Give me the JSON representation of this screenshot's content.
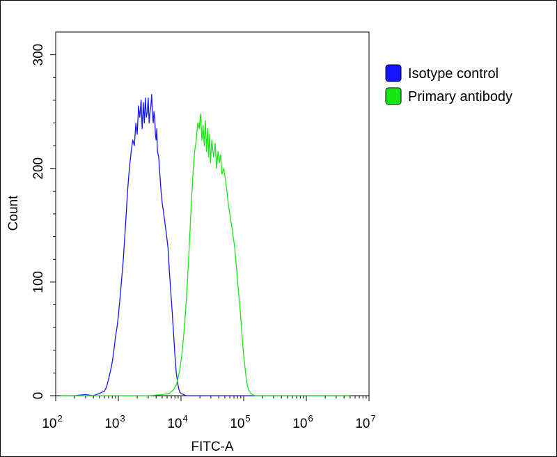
{
  "chart_data": {
    "type": "line",
    "title": "",
    "xlabel": "FITC-A",
    "ylabel": "Count",
    "x_scale": "log",
    "xlim": [
      100,
      10000000
    ],
    "ylim": [
      0,
      320
    ],
    "x_ticks": [
      {
        "value": 100,
        "base": "10",
        "exp": "2"
      },
      {
        "value": 1000,
        "base": "10",
        "exp": "3"
      },
      {
        "value": 10000,
        "base": "10",
        "exp": "4"
      },
      {
        "value": 100000,
        "base": "10",
        "exp": "5"
      },
      {
        "value": 1000000,
        "base": "10",
        "exp": "6"
      },
      {
        "value": 10000000,
        "base": "10",
        "exp": "7"
      }
    ],
    "y_ticks": [
      0,
      100,
      200,
      300
    ],
    "grid": false,
    "legend_position": "right",
    "series": [
      {
        "name": "Isotype control",
        "color": "#1515ff",
        "x": [
          120,
          200,
          300,
          400,
          500,
          600,
          650,
          700,
          750,
          800,
          850,
          900,
          950,
          1000,
          1100,
          1200,
          1300,
          1400,
          1500,
          1600,
          1700,
          1800,
          1900,
          2000,
          2100,
          2200,
          2300,
          2400,
          2500,
          2600,
          2700,
          2800,
          2900,
          3000,
          3100,
          3200,
          3300,
          3400,
          3500,
          3600,
          3700,
          3800,
          3900,
          4000,
          4100,
          4200,
          4400,
          4600,
          4800,
          5000,
          5300,
          5600,
          5900,
          6200,
          6500,
          6800,
          7100,
          7400,
          7700,
          8000,
          8400,
          8800,
          9200,
          9600,
          10000,
          11000,
          12000,
          14000,
          20000,
          50000,
          100000,
          300000,
          1000000,
          5000000
        ],
        "y": [
          0,
          0,
          1,
          0,
          2,
          4,
          8,
          15,
          22,
          30,
          40,
          52,
          60,
          70,
          95,
          120,
          150,
          180,
          200,
          215,
          225,
          220,
          240,
          230,
          255,
          245,
          260,
          235,
          258,
          240,
          262,
          245,
          250,
          262,
          240,
          250,
          255,
          265,
          248,
          240,
          250,
          245,
          230,
          225,
          235,
          215,
          210,
          195,
          180,
          170,
          160,
          150,
          140,
          130,
          110,
          95,
          80,
          65,
          50,
          35,
          20,
          12,
          6,
          3,
          2,
          1,
          0,
          0,
          0,
          0,
          0,
          0,
          0,
          0
        ]
      },
      {
        "name": "Primary antibody",
        "color": "#15e815",
        "x": [
          120,
          1000,
          3000,
          5000,
          6500,
          7500,
          8500,
          9500,
          10500,
          11500,
          12500,
          13500,
          14500,
          15500,
          16500,
          17500,
          18500,
          19500,
          20500,
          21500,
          22500,
          23500,
          24500,
          25500,
          26500,
          27500,
          28500,
          29500,
          31000,
          33000,
          35000,
          37000,
          39000,
          41000,
          43000,
          45000,
          48000,
          51000,
          54000,
          57000,
          60000,
          64000,
          68000,
          72000,
          76000,
          80000,
          85000,
          90000,
          95000,
          100000,
          105000,
          110000,
          115000,
          120000,
          130000,
          140000,
          150000,
          170000,
          200000,
          300000,
          1000000,
          5000000
        ],
        "y": [
          0,
          0,
          0,
          1,
          2,
          5,
          10,
          22,
          40,
          65,
          95,
          130,
          165,
          195,
          215,
          225,
          240,
          235,
          248,
          225,
          238,
          220,
          242,
          215,
          235,
          210,
          230,
          205,
          225,
          210,
          222,
          200,
          215,
          205,
          212,
          195,
          200,
          190,
          180,
          168,
          160,
          150,
          140,
          130,
          115,
          100,
          85,
          68,
          50,
          35,
          25,
          15,
          8,
          5,
          2,
          1,
          0,
          0,
          0,
          0,
          0,
          0
        ]
      }
    ]
  }
}
